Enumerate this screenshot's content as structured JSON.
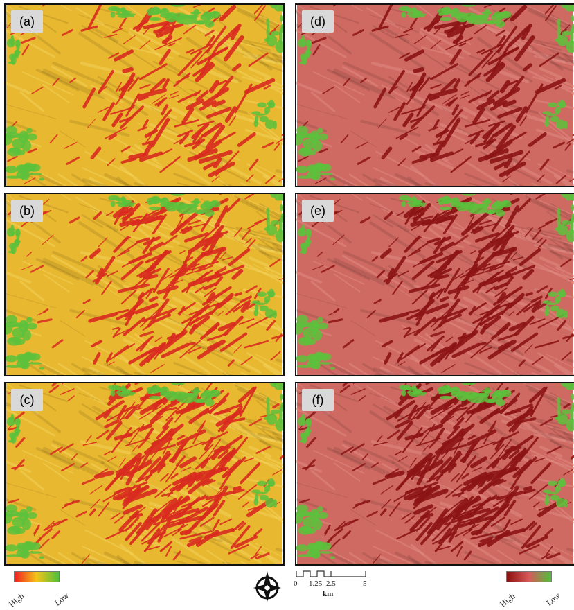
{
  "panels": [
    {
      "id": "a",
      "label": "(a)",
      "scheme": "yellow"
    },
    {
      "id": "b",
      "label": "(b)",
      "scheme": "yellow"
    },
    {
      "id": "c",
      "label": "(c)",
      "scheme": "yellow"
    },
    {
      "id": "d",
      "label": "(d)",
      "scheme": "red"
    },
    {
      "id": "e",
      "label": "(e)",
      "scheme": "red"
    },
    {
      "id": "f",
      "label": "(f)",
      "scheme": "red"
    }
  ],
  "legend_left": {
    "high": "High",
    "low": "Low",
    "colors": [
      "#ee2020",
      "#f5c518",
      "#4fbf3a"
    ]
  },
  "legend_right": {
    "high": "High",
    "low": "Low",
    "colors": [
      "#8b1010",
      "#d65a5a",
      "#4fbf3a"
    ]
  },
  "scale_bar": {
    "ticks": [
      "0",
      "1.25",
      "2.5",
      "5"
    ],
    "unit": "km"
  },
  "north_arrow": {
    "icon": "compass-north-arrow-icon"
  },
  "colors": {
    "yellow_base": "#e8b830",
    "yellow_light": "#f4d35a",
    "yellow_red": "#d92b1f",
    "red_base": "#cf6a62",
    "red_dark": "#8c1414",
    "green": "#5cc13c"
  }
}
